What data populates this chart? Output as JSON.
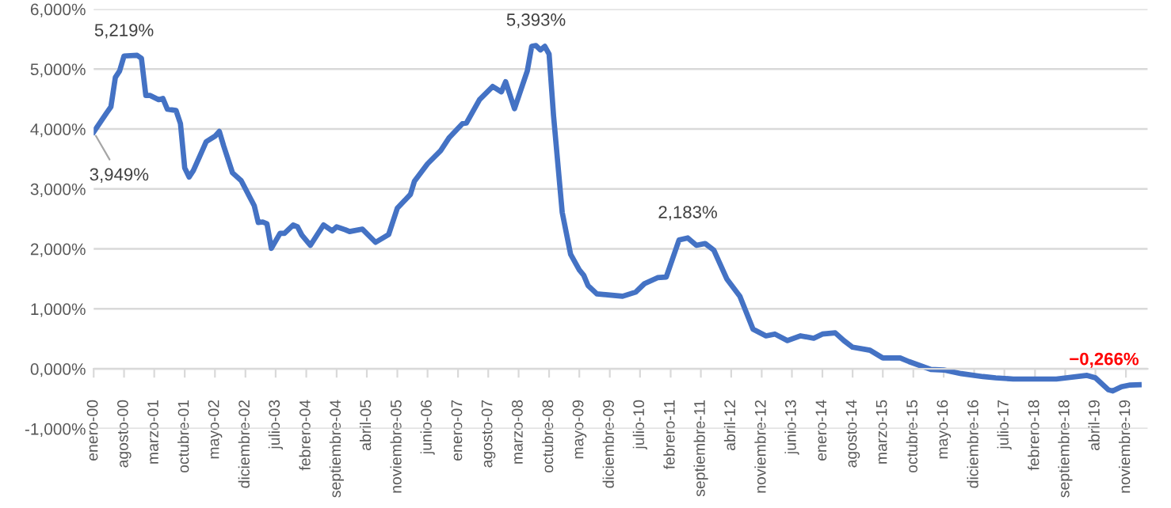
{
  "chart_data": {
    "type": "line",
    "x": [
      "2000-01",
      "2000-04",
      "2000-05",
      "2000-06",
      "2000-07",
      "2000-08",
      "2000-11",
      "2000-12",
      "2001-01",
      "2001-02",
      "2001-04",
      "2001-05",
      "2001-06",
      "2001-08",
      "2001-09",
      "2001-10",
      "2001-11",
      "2001-12",
      "2002-03",
      "2002-05",
      "2002-06",
      "2002-07",
      "2002-09",
      "2002-11",
      "2003-02",
      "2003-03",
      "2003-04",
      "2003-05",
      "2003-06",
      "2003-08",
      "2003-09",
      "2003-11",
      "2003-12",
      "2004-01",
      "2004-03",
      "2004-06",
      "2004-08",
      "2004-09",
      "2004-11",
      "2004-12",
      "2005-03",
      "2005-06",
      "2005-09",
      "2005-11",
      "2006-02",
      "2006-03",
      "2006-06",
      "2006-09",
      "2006-11",
      "2007-02",
      "2007-03",
      "2007-06",
      "2007-09",
      "2007-11",
      "2007-12",
      "2008-02",
      "2008-05",
      "2008-06",
      "2008-07",
      "2008-08",
      "2008-09",
      "2008-10",
      "2008-11",
      "2009-01",
      "2009-03",
      "2009-05",
      "2009-06",
      "2009-07",
      "2009-09",
      "2009-12",
      "2010-03",
      "2010-06",
      "2010-08",
      "2010-11",
      "2011-01",
      "2011-04",
      "2011-06",
      "2011-08",
      "2011-10",
      "2011-12",
      "2012-03",
      "2012-06",
      "2012-09",
      "2012-12",
      "2013-02",
      "2013-05",
      "2013-08",
      "2013-11",
      "2014-01",
      "2014-04",
      "2014-06",
      "2014-08",
      "2014-12",
      "2015-03",
      "2015-07",
      "2015-09",
      "2016-02",
      "2016-05",
      "2016-09",
      "2017-02",
      "2017-05",
      "2017-09",
      "2018-07",
      "2019-02",
      "2019-04",
      "2019-07",
      "2019-08",
      "2019-10",
      "2019-12",
      "2020-02"
    ],
    "series": [
      {
        "color": "#4472c4",
        "values": [
          3.949,
          4.27,
          4.37,
          4.86,
          4.97,
          5.219,
          5.23,
          5.18,
          4.56,
          4.56,
          4.49,
          4.51,
          4.33,
          4.31,
          4.09,
          3.35,
          3.2,
          3.31,
          3.79,
          3.88,
          3.96,
          3.72,
          3.27,
          3.14,
          2.72,
          2.44,
          2.45,
          2.42,
          2.01,
          2.26,
          2.26,
          2.4,
          2.37,
          2.23,
          2.06,
          2.4,
          2.3,
          2.37,
          2.32,
          2.29,
          2.33,
          2.11,
          2.24,
          2.68,
          2.91,
          3.13,
          3.42,
          3.64,
          3.86,
          4.09,
          4.1,
          4.49,
          4.71,
          4.62,
          4.79,
          4.34,
          4.97,
          5.38,
          5.393,
          5.32,
          5.38,
          5.25,
          4.23,
          2.61,
          1.91,
          1.65,
          1.56,
          1.39,
          1.25,
          1.23,
          1.21,
          1.28,
          1.42,
          1.52,
          1.53,
          2.15,
          2.183,
          2.06,
          2.09,
          1.98,
          1.5,
          1.21,
          0.66,
          0.55,
          0.58,
          0.47,
          0.55,
          0.51,
          0.58,
          0.6,
          0.47,
          0.36,
          0.31,
          0.18,
          0.18,
          0.12,
          -0.01,
          -0.02,
          -0.08,
          -0.13,
          -0.15,
          -0.17,
          -0.17,
          -0.11,
          -0.15,
          -0.35,
          -0.37,
          -0.3,
          -0.27,
          -0.266
        ]
      }
    ],
    "annotations": [
      {
        "text": "3,949%",
        "x": "2000-01",
        "y": 3.949
      },
      {
        "text": "5,219%",
        "x": "2000-08",
        "y": 5.219
      },
      {
        "text": "5,393%",
        "x": "2008-07",
        "y": 5.393
      },
      {
        "text": "2,183%",
        "x": "2011-06",
        "y": 2.183
      },
      {
        "text": "−0,266%",
        "x": "2020-02",
        "y": -0.266
      }
    ],
    "xlim": [
      "2000-01",
      "2020-04"
    ],
    "xticks": [
      {
        "value": "2000-01",
        "label": "enero-00"
      },
      {
        "value": "2000-08",
        "label": "agosto-00"
      },
      {
        "value": "2001-03",
        "label": "marzo-01"
      },
      {
        "value": "2001-10",
        "label": "octubre-01"
      },
      {
        "value": "2002-05",
        "label": "mayo-02"
      },
      {
        "value": "2002-12",
        "label": "diciembre-02"
      },
      {
        "value": "2003-07",
        "label": "julio-03"
      },
      {
        "value": "2004-02",
        "label": "febrero-04"
      },
      {
        "value": "2004-09",
        "label": "septiembre-04"
      },
      {
        "value": "2005-04",
        "label": "abril-05"
      },
      {
        "value": "2005-11",
        "label": "noviembre-05"
      },
      {
        "value": "2006-06",
        "label": "junio-06"
      },
      {
        "value": "2007-01",
        "label": "enero-07"
      },
      {
        "value": "2007-08",
        "label": "agosto-07"
      },
      {
        "value": "2008-03",
        "label": "marzo-08"
      },
      {
        "value": "2008-10",
        "label": "octubre-08"
      },
      {
        "value": "2009-05",
        "label": "mayo-09"
      },
      {
        "value": "2009-12",
        "label": "diciembre-09"
      },
      {
        "value": "2010-07",
        "label": "julio-10"
      },
      {
        "value": "2011-02",
        "label": "febrero-11"
      },
      {
        "value": "2011-09",
        "label": "septiembre-11"
      },
      {
        "value": "2012-04",
        "label": "abril-12"
      },
      {
        "value": "2012-11",
        "label": "noviembre-12"
      },
      {
        "value": "2013-06",
        "label": "junio-13"
      },
      {
        "value": "2014-01",
        "label": "enero-14"
      },
      {
        "value": "2014-08",
        "label": "agosto-14"
      },
      {
        "value": "2015-03",
        "label": "marzo-15"
      },
      {
        "value": "2015-10",
        "label": "octubre-15"
      },
      {
        "value": "2016-05",
        "label": "mayo-16"
      },
      {
        "value": "2016-12",
        "label": "diciembre-16"
      },
      {
        "value": "2017-07",
        "label": "julio-17"
      },
      {
        "value": "2018-02",
        "label": "febrero-18"
      },
      {
        "value": "2018-09",
        "label": "septiembre-18"
      },
      {
        "value": "2019-04",
        "label": "abril-19"
      },
      {
        "value": "2019-11",
        "label": "noviembre-19"
      }
    ],
    "ylim": [
      -1,
      6
    ],
    "yticks": [
      {
        "value": -1,
        "label": "-1,000%"
      },
      {
        "value": 0,
        "label": "0,000%"
      },
      {
        "value": 1,
        "label": "1,000%"
      },
      {
        "value": 2,
        "label": "2,000%"
      },
      {
        "value": 3,
        "label": "3,000%"
      },
      {
        "value": 4,
        "label": "4,000%"
      },
      {
        "value": 5,
        "label": "5,000%"
      },
      {
        "value": 6,
        "label": "6,000%"
      }
    ],
    "grid": "y",
    "legend": false,
    "marker": "none",
    "line_style": "solid"
  }
}
